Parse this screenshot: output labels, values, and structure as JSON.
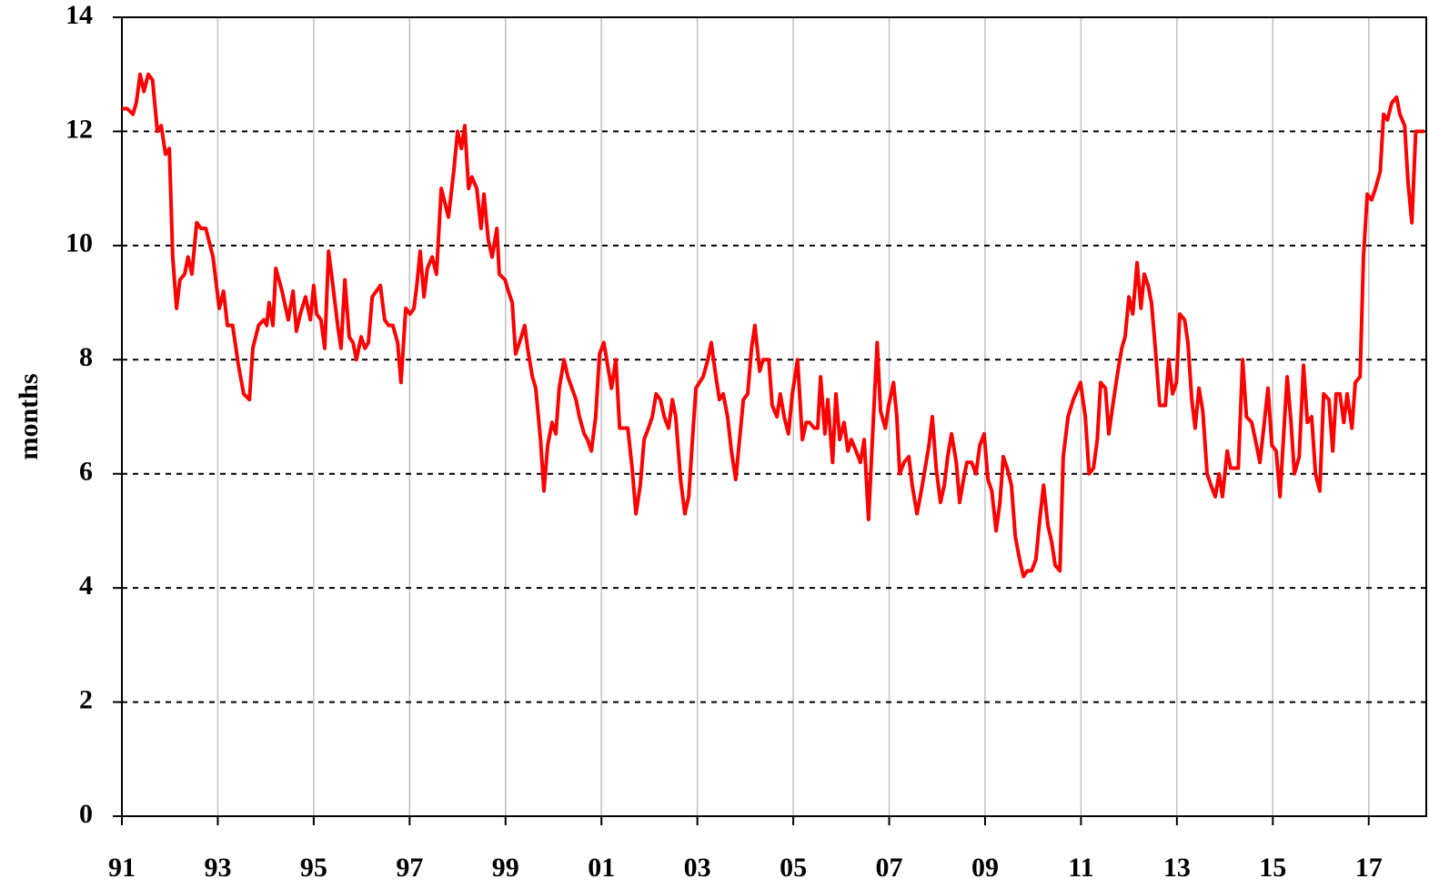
{
  "chart_data": {
    "type": "line",
    "ylabel": "months",
    "xlim": [
      1991,
      2018.2
    ],
    "xticks": [
      {
        "value": 1991,
        "label": "91"
      },
      {
        "value": 1993,
        "label": "93"
      },
      {
        "value": 1995,
        "label": "95"
      },
      {
        "value": 1997,
        "label": "97"
      },
      {
        "value": 1999,
        "label": "99"
      },
      {
        "value": 2001,
        "label": "01"
      },
      {
        "value": 2003,
        "label": "03"
      },
      {
        "value": 2005,
        "label": "05"
      },
      {
        "value": 2007,
        "label": "07"
      },
      {
        "value": 2009,
        "label": "09"
      },
      {
        "value": 2011,
        "label": "11"
      },
      {
        "value": 2013,
        "label": "13"
      },
      {
        "value": 2015,
        "label": "15"
      },
      {
        "value": 2017,
        "label": "17"
      }
    ],
    "ylim": [
      0,
      14
    ],
    "yticks": [
      0,
      2,
      4,
      6,
      8,
      10,
      12,
      14
    ],
    "grid": true,
    "x": [
      1991.0,
      1991.11,
      1991.23,
      1991.3,
      1991.38,
      1991.46,
      1991.55,
      1991.64,
      1991.74,
      1991.82,
      1991.91,
      1991.99,
      1992.06,
      1992.14,
      1992.21,
      1992.31,
      1992.38,
      1992.46,
      1992.56,
      1992.65,
      1992.75,
      1992.9,
      1993.03,
      1993.12,
      1993.2,
      1993.31,
      1993.43,
      1993.54,
      1993.66,
      1993.73,
      1993.85,
      1993.96,
      1994.02,
      1994.07,
      1994.15,
      1994.21,
      1994.34,
      1994.47,
      1994.57,
      1994.64,
      1994.72,
      1994.83,
      1994.93,
      1995.0,
      1995.06,
      1995.15,
      1995.23,
      1995.31,
      1995.4,
      1995.5,
      1995.57,
      1995.65,
      1995.74,
      1995.82,
      1995.89,
      1995.99,
      1996.07,
      1996.14,
      1996.22,
      1996.39,
      1996.48,
      1996.56,
      1996.65,
      1996.75,
      1996.82,
      1996.92,
      1997.01,
      1997.09,
      1997.15,
      1997.22,
      1997.3,
      1997.37,
      1997.47,
      1997.56,
      1997.66,
      1997.81,
      1997.92,
      1998.0,
      1998.08,
      1998.15,
      1998.23,
      1998.3,
      1998.4,
      1998.49,
      1998.55,
      1998.64,
      1998.72,
      1998.82,
      1998.87,
      1998.99,
      1999.06,
      1999.14,
      1999.21,
      1999.29,
      1999.4,
      1999.46,
      1999.56,
      1999.63,
      1999.73,
      1999.8,
      1999.88,
      1999.97,
      2000.05,
      2000.12,
      2000.22,
      2000.3,
      2000.47,
      2000.54,
      2000.64,
      2000.71,
      2000.79,
      2000.88,
      2000.96,
      2001.05,
      2001.13,
      2001.21,
      2001.3,
      2001.38,
      2001.55,
      2001.64,
      2001.72,
      2001.81,
      2001.89,
      2001.98,
      2002.06,
      2002.14,
      2002.23,
      2002.31,
      2002.4,
      2002.48,
      2002.55,
      2002.65,
      2002.74,
      2002.82,
      2002.89,
      2002.97,
      2003.12,
      2003.22,
      2003.29,
      2003.37,
      2003.46,
      2003.54,
      2003.63,
      2003.71,
      2003.8,
      2003.88,
      2003.96,
      2004.05,
      2004.13,
      2004.2,
      2004.3,
      2004.37,
      2004.49,
      2004.56,
      2004.66,
      2004.73,
      2004.81,
      2004.9,
      2004.98,
      2005.09,
      2005.19,
      2005.27,
      2005.34,
      2005.44,
      2005.51,
      2005.57,
      2005.66,
      2005.72,
      2005.82,
      2005.89,
      2005.97,
      2006.06,
      2006.14,
      2006.21,
      2006.31,
      2006.4,
      2006.48,
      2006.57,
      2006.65,
      2006.75,
      2006.82,
      2006.92,
      2006.99,
      2007.09,
      2007.16,
      2007.22,
      2007.31,
      2007.41,
      2007.48,
      2007.58,
      2007.67,
      2007.75,
      2007.83,
      2007.9,
      2007.98,
      2008.07,
      2008.15,
      2008.22,
      2008.3,
      2008.4,
      2008.47,
      2008.55,
      2008.62,
      2008.72,
      2008.81,
      2008.89,
      2008.98,
      2009.06,
      2009.14,
      2009.23,
      2009.31,
      2009.38,
      2009.46,
      2009.55,
      2009.63,
      2009.72,
      2009.8,
      2009.88,
      2009.97,
      2010.06,
      2010.14,
      2010.22,
      2010.31,
      2010.39,
      2010.46,
      2010.56,
      2010.63,
      2010.73,
      2010.84,
      2010.99,
      2011.09,
      2011.17,
      2011.26,
      2011.34,
      2011.41,
      2011.51,
      2011.58,
      2011.68,
      2011.77,
      2011.85,
      2011.92,
      2012.0,
      2012.08,
      2012.17,
      2012.25,
      2012.32,
      2012.4,
      2012.47,
      2012.55,
      2012.64,
      2012.76,
      2012.83,
      2012.91,
      2012.99,
      2013.06,
      2013.16,
      2013.23,
      2013.31,
      2013.38,
      2013.46,
      2013.54,
      2013.63,
      2013.71,
      2013.8,
      2013.88,
      2013.95,
      2014.05,
      2014.12,
      2014.28,
      2014.37,
      2014.45,
      2014.56,
      2014.66,
      2014.73,
      2014.81,
      2014.9,
      2014.98,
      2015.07,
      2015.15,
      2015.22,
      2015.3,
      2015.38,
      2015.45,
      2015.55,
      2015.64,
      2015.72,
      2015.81,
      2015.89,
      2015.98,
      2016.06,
      2016.17,
      2016.25,
      2016.32,
      2016.4,
      2016.48,
      2016.55,
      2016.65,
      2016.72,
      2016.82,
      2016.89,
      2016.97,
      2017.06,
      2017.14,
      2017.24,
      2017.31,
      2017.39,
      2017.48,
      2017.58,
      2017.65,
      2017.75,
      2017.82,
      2017.9,
      2017.98,
      2018.07,
      2018.16
    ],
    "series": [
      {
        "color": "#ff0000",
        "values": [
          12.4,
          12.4,
          12.3,
          12.5,
          13.0,
          12.7,
          13.0,
          12.9,
          12.0,
          12.1,
          11.6,
          11.7,
          9.8,
          8.9,
          9.4,
          9.5,
          9.8,
          9.5,
          10.4,
          10.3,
          10.3,
          9.8,
          8.9,
          9.2,
          8.6,
          8.6,
          7.9,
          7.4,
          7.3,
          8.2,
          8.6,
          8.7,
          8.6,
          9.0,
          8.6,
          9.6,
          9.2,
          8.7,
          9.2,
          8.5,
          8.8,
          9.1,
          8.7,
          9.3,
          8.8,
          8.7,
          8.2,
          9.9,
          9.3,
          8.6,
          8.2,
          9.4,
          8.4,
          8.3,
          8.0,
          8.4,
          8.2,
          8.3,
          9.1,
          9.3,
          8.7,
          8.6,
          8.6,
          8.3,
          7.6,
          8.9,
          8.8,
          8.9,
          9.3,
          9.9,
          9.1,
          9.6,
          9.8,
          9.5,
          11.0,
          10.5,
          11.3,
          12.0,
          11.7,
          12.1,
          11.0,
          11.2,
          11.0,
          10.3,
          10.9,
          10.1,
          9.8,
          10.3,
          9.5,
          9.4,
          9.2,
          9.0,
          8.1,
          8.3,
          8.6,
          8.2,
          7.7,
          7.5,
          6.6,
          5.7,
          6.5,
          6.9,
          6.7,
          7.5,
          8.0,
          7.7,
          7.3,
          7.0,
          6.7,
          6.6,
          6.4,
          7.0,
          8.1,
          8.3,
          7.9,
          7.5,
          8.0,
          6.8,
          6.8,
          6.1,
          5.3,
          5.8,
          6.6,
          6.8,
          7.0,
          7.4,
          7.3,
          7.0,
          6.8,
          7.3,
          7.0,
          5.9,
          5.3,
          5.6,
          6.5,
          7.5,
          7.7,
          8.0,
          8.3,
          7.8,
          7.3,
          7.4,
          7.0,
          6.4,
          5.9,
          6.6,
          7.3,
          7.4,
          8.2,
          8.6,
          7.8,
          8.0,
          8.0,
          7.2,
          7.0,
          7.4,
          7.0,
          6.7,
          7.4,
          8.0,
          6.6,
          6.9,
          6.9,
          6.8,
          6.8,
          7.7,
          6.7,
          7.3,
          6.2,
          7.4,
          6.6,
          6.9,
          6.4,
          6.6,
          6.4,
          6.2,
          6.6,
          5.2,
          6.6,
          8.3,
          7.1,
          6.8,
          7.2,
          7.6,
          7.0,
          6.0,
          6.2,
          6.3,
          5.8,
          5.3,
          5.7,
          6.1,
          6.5,
          7.0,
          6.1,
          5.5,
          5.8,
          6.3,
          6.7,
          6.2,
          5.5,
          5.9,
          6.2,
          6.2,
          6.0,
          6.5,
          6.7,
          5.9,
          5.7,
          5.0,
          5.5,
          6.3,
          6.1,
          5.8,
          4.9,
          4.5,
          4.2,
          4.3,
          4.3,
          4.5,
          5.2,
          5.8,
          5.1,
          4.8,
          4.4,
          4.3,
          6.3,
          7.0,
          7.3,
          7.6,
          7.0,
          6.0,
          6.1,
          6.6,
          7.6,
          7.5,
          6.7,
          7.3,
          7.8,
          8.2,
          8.4,
          9.1,
          8.8,
          9.7,
          8.9,
          9.5,
          9.3,
          9.0,
          8.2,
          7.2,
          7.2,
          8.0,
          7.4,
          7.6,
          8.8,
          8.7,
          8.3,
          7.3,
          6.8,
          7.5,
          7.1,
          6.0,
          5.8,
          5.6,
          6.0,
          5.6,
          6.4,
          6.1,
          6.1,
          8.0,
          7.0,
          6.9,
          6.5,
          6.2,
          6.8,
          7.5,
          6.5,
          6.4,
          5.6,
          6.6,
          7.7,
          6.9,
          6.0,
          6.3,
          7.9,
          6.9,
          7.0,
          6.0,
          5.7,
          7.4,
          7.3,
          6.4,
          7.4,
          7.4,
          6.9,
          7.4,
          6.8,
          7.6,
          7.7,
          9.8,
          10.9,
          10.8,
          11.0,
          11.3,
          12.3,
          12.2,
          12.5,
          12.6,
          12.3,
          12.1,
          11.1,
          10.4,
          12.0,
          12.0,
          12.0
        ]
      }
    ]
  }
}
